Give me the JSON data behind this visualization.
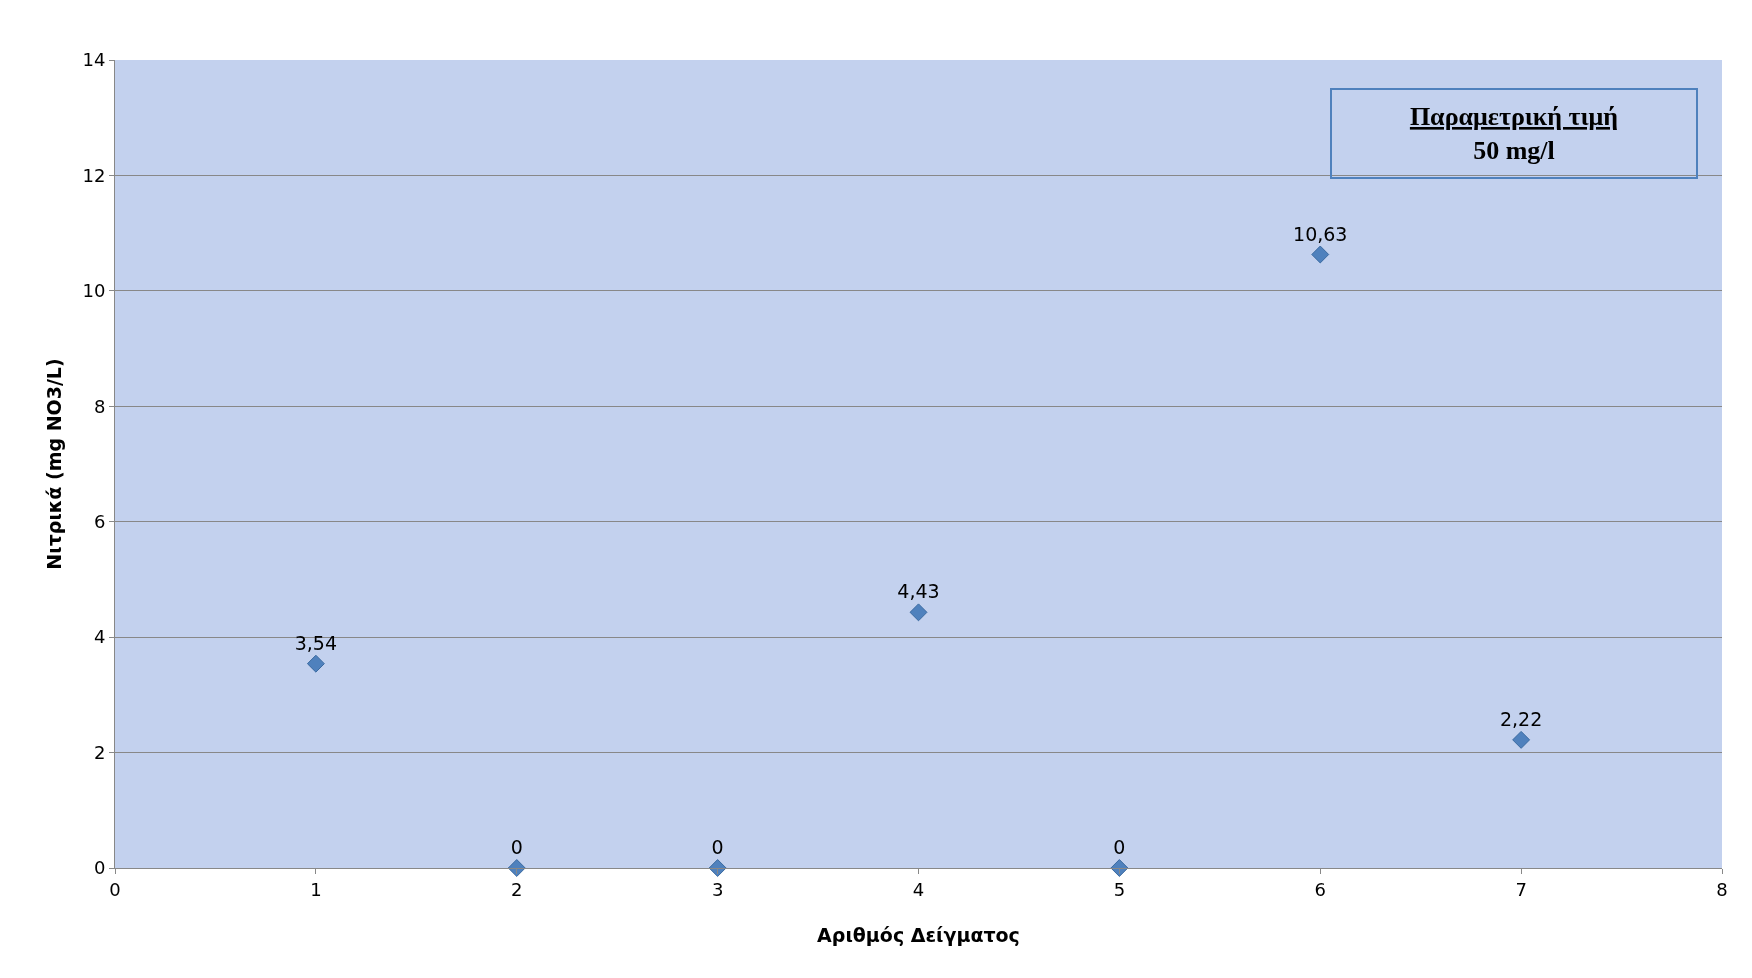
{
  "chart_data": {
    "type": "scatter",
    "xlabel": "Αριθμός Δείγματος",
    "ylabel": "Νιτρικά (mg NO3/L)",
    "x": [
      1,
      2,
      3,
      4,
      5,
      6,
      7
    ],
    "series": [
      {
        "color": "#4f81bd",
        "values": [
          3.54,
          0,
          0,
          4.43,
          0,
          10.63,
          2.22
        ],
        "value_labels": [
          "3,54",
          "0",
          "0",
          "4,43",
          "0",
          "10,63",
          "2,22"
        ]
      }
    ],
    "xlim": [
      0,
      8
    ],
    "xticks": [
      0,
      1,
      2,
      3,
      4,
      5,
      6,
      7,
      8
    ],
    "ylim": [
      0,
      14
    ],
    "yticks": [
      0,
      2,
      4,
      6,
      8,
      10,
      12,
      14
    ],
    "grid": "y",
    "marker": "diamond",
    "annotations": [
      "Παραμετρική τιμή\n50 mg/l"
    ]
  }
}
